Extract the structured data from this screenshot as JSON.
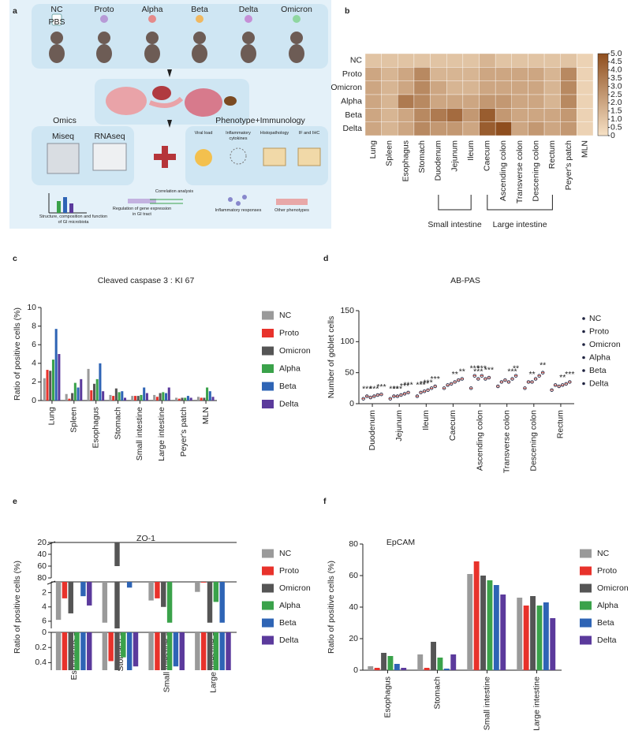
{
  "panel_labels": [
    "a",
    "b",
    "c",
    "d",
    "e",
    "f"
  ],
  "diagram": {
    "strains": [
      "NC",
      "Proto",
      "Alpha",
      "Beta",
      "Delta",
      "Omicron"
    ],
    "bottle_label": "PBS",
    "left_header": "Omics",
    "right_header": "Phenotype+Immunology",
    "omics": [
      "Miseq",
      "RNAseq"
    ],
    "phenotypes": [
      "Viral load",
      "Inflammatory cytokines",
      "Histopathology",
      "IF and IHC"
    ],
    "outcomes": [
      "Structure, composition and function of GI microbiota",
      "Regulation of gene expression in GI tract",
      "Correlation analysis",
      "Inflammatory responses",
      "Other phenotypes"
    ]
  },
  "chart_data": [
    {
      "type": "heatmap",
      "rows": [
        "NC",
        "Proto",
        "Omicron",
        "Alpha",
        "Beta",
        "Delta"
      ],
      "columns": [
        "Lung",
        "Spleen",
        "Esophagus",
        "Stomach",
        "Duodenum",
        "Jejunum",
        "Ileum",
        "Caecum",
        "Ascending colon",
        "Transverse colon",
        "Descening colon",
        "Rectum",
        "Peyer's patch",
        "MLN"
      ],
      "column_groups": [
        null,
        null,
        null,
        null,
        "Small intestine",
        "Small intestine",
        "Small intestine",
        "Large intestine",
        "Large intestine",
        "Large intestine",
        "Large intestine",
        "Large intestine",
        null,
        null
      ],
      "values": [
        [
          1,
          1,
          1,
          1,
          1,
          1,
          1,
          1.5,
          1,
          1,
          1,
          1,
          1,
          0.5
        ],
        [
          2,
          1.5,
          2,
          3,
          1.5,
          1.5,
          1.5,
          2,
          2,
          2,
          2,
          1.5,
          3,
          0.5
        ],
        [
          2,
          1.5,
          2,
          3,
          2,
          1.5,
          1.5,
          2,
          2,
          2,
          2,
          1.5,
          3,
          0.5
        ],
        [
          2,
          1.5,
          3.5,
          3,
          2,
          2,
          2,
          2.5,
          2.5,
          2,
          2,
          1.5,
          3,
          0.5
        ],
        [
          2,
          1.5,
          2,
          3,
          3.5,
          4,
          2.5,
          4.5,
          2.5,
          2,
          2,
          2,
          2.5,
          0.5
        ],
        [
          2,
          1.5,
          2,
          3,
          2.5,
          2.5,
          2,
          4.5,
          5,
          2,
          2.5,
          2,
          2.5,
          0.5
        ]
      ],
      "colormap": [
        "#f6e1c5",
        "#8f4e1e"
      ],
      "clim": [
        0,
        5
      ],
      "cticks": [
        0,
        0.5,
        {
          "value": 1,
          "label": "1.0"
        },
        1.5,
        {
          "value": 2,
          "label": "2.0"
        },
        2.5,
        {
          "value": 3,
          "label": "3.0"
        },
        3.5,
        {
          "value": 4,
          "label": "4.0"
        },
        4.5,
        {
          "value": 5,
          "label": "5.0"
        }
      ]
    },
    {
      "type": "bar",
      "title": "Cleaved caspase 3 : KI 67",
      "y_label": "Ratio of positive cells (%)",
      "categories": [
        "Lung",
        "Spleen",
        "Esophagus",
        "Stomach",
        "Small intestine",
        "Large intestine",
        "Peyer's patch",
        "MLN"
      ],
      "ylim": [
        0,
        10
      ],
      "yticks": [
        0,
        2,
        4,
        6,
        8,
        10
      ],
      "series": [
        {
          "name": "NC",
          "color": "#9a9a9a",
          "values": [
            2.4,
            0.7,
            3.4,
            0.6,
            0.5,
            0.6,
            0.3,
            0.4
          ]
        },
        {
          "name": "Proto",
          "color": "#e8322b",
          "values": [
            3.3,
            0.2,
            1.1,
            0.5,
            0.5,
            0.4,
            0.2,
            0.3
          ]
        },
        {
          "name": "Omicron",
          "color": "#555555",
          "values": [
            3.2,
            0.8,
            1.8,
            1.3,
            0.5,
            0.8,
            0.3,
            0.3
          ]
        },
        {
          "name": "Alpha",
          "color": "#3aa24a",
          "values": [
            4.4,
            1.9,
            2.3,
            0.9,
            0.6,
            0.9,
            0.3,
            1.4
          ]
        },
        {
          "name": "Beta",
          "color": "#2e64b5",
          "values": [
            7.7,
            1.4,
            4.0,
            1.0,
            1.4,
            0.8,
            0.5,
            1.0
          ]
        },
        {
          "name": "Delta",
          "color": "#5b3a9c",
          "values": [
            5.0,
            2.3,
            1.0,
            0.3,
            0.8,
            1.4,
            0.3,
            0.4
          ]
        }
      ]
    },
    {
      "type": "dot",
      "title": "AB-PAS",
      "y_label": "Number of goblet cells",
      "categories": [
        "Duodenum",
        "Jejunum",
        "Ileum",
        "Caecum",
        "Ascending colon",
        "Transverse colon",
        "Descening colon",
        "Rectum"
      ],
      "ylim": [
        0,
        150
      ],
      "yticks": [
        0,
        50,
        100,
        150
      ],
      "color": "#1f2340",
      "series": [
        {
          "name": "NC",
          "values": [
            8,
            8,
            12,
            25,
            25,
            28,
            25,
            22
          ],
          "significance": [
            null,
            null,
            null,
            null,
            null,
            null,
            null,
            null
          ]
        },
        {
          "name": "Proto",
          "values": [
            12,
            12,
            18,
            30,
            45,
            35,
            35,
            30
          ],
          "significance": [
            "***",
            "***",
            "***",
            null,
            "***",
            null,
            null,
            null
          ]
        },
        {
          "name": "Omicron",
          "values": [
            10,
            12,
            20,
            32,
            40,
            38,
            35,
            28
          ],
          "significance": [
            null,
            "***",
            "***",
            null,
            "***",
            null,
            "**",
            null
          ]
        },
        {
          "name": "Alpha",
          "values": [
            12,
            14,
            22,
            35,
            45,
            35,
            40,
            30
          ],
          "significance": [
            "***",
            null,
            "***",
            "**",
            "***",
            null,
            null,
            "**"
          ]
        },
        {
          "name": "Beta",
          "values": [
            14,
            16,
            25,
            38,
            40,
            40,
            45,
            32
          ],
          "significance": [
            null,
            "***",
            null,
            null,
            null,
            "***",
            null,
            null
          ]
        },
        {
          "name": "Delta",
          "values": [
            15,
            18,
            28,
            40,
            42,
            45,
            50,
            35
          ],
          "significance": [
            "***",
            "***",
            "***",
            "**",
            "***",
            "**",
            "**",
            "***"
          ]
        }
      ]
    },
    {
      "type": "bar",
      "title": "ZO-1",
      "y_label": "Ratio of positive cells (%)",
      "categories": [
        "Esophagus",
        "Stomach",
        "Small intestine",
        "Large intestine"
      ],
      "y_segments": [
        {
          "ylim": [
            0,
            0.5
          ],
          "yticks": [
            0,
            0.2,
            0.4
          ]
        },
        {
          "ylim": [
            0.5,
            7
          ],
          "yticks": [
            2,
            4,
            6
          ]
        },
        {
          "ylim": [
            20,
            80
          ],
          "yticks": [
            20,
            40,
            60,
            80
          ]
        }
      ],
      "series": [
        {
          "name": "NC",
          "color": "#9a9a9a",
          "values": [
            5.8,
            6.2,
            3.1,
            1.9
          ]
        },
        {
          "name": "Proto",
          "color": "#e8322b",
          "values": [
            2.8,
            0.38,
            2.8,
            0.6
          ]
        },
        {
          "name": "Omicron",
          "color": "#555555",
          "values": [
            4.9,
            60,
            4.0,
            6.2
          ]
        },
        {
          "name": "Alpha",
          "color": "#3aa24a",
          "values": [
            0.5,
            0.33,
            6.2,
            3.3
          ]
        },
        {
          "name": "Beta",
          "color": "#2e64b5",
          "values": [
            2.5,
            1.3,
            0.45,
            6.2
          ]
        },
        {
          "name": "Delta",
          "color": "#5b3a9c",
          "values": [
            3.8,
            0.45,
            0.5,
            0.5
          ]
        }
      ]
    },
    {
      "type": "bar",
      "title": "EpCAM",
      "y_label": "Ratio of positive cells (%)",
      "categories": [
        "Esophagus",
        "Stomach",
        "Small intestine",
        "Large intestine"
      ],
      "ylim": [
        0,
        80
      ],
      "yticks": [
        0,
        20,
        40,
        60,
        80
      ],
      "series": [
        {
          "name": "NC",
          "color": "#9a9a9a",
          "values": [
            2.5,
            10,
            61,
            46
          ]
        },
        {
          "name": "Proto",
          "color": "#e8322b",
          "values": [
            1.5,
            1.5,
            69,
            41
          ]
        },
        {
          "name": "Omicron",
          "color": "#555555",
          "values": [
            11,
            18,
            60,
            47
          ]
        },
        {
          "name": "Alpha",
          "color": "#3aa24a",
          "values": [
            9,
            8,
            57,
            41
          ]
        },
        {
          "name": "Beta",
          "color": "#2e64b5",
          "values": [
            4,
            1,
            54,
            43
          ]
        },
        {
          "name": "Delta",
          "color": "#5b3a9c",
          "values": [
            1.5,
            10,
            48,
            33
          ]
        }
      ]
    }
  ]
}
